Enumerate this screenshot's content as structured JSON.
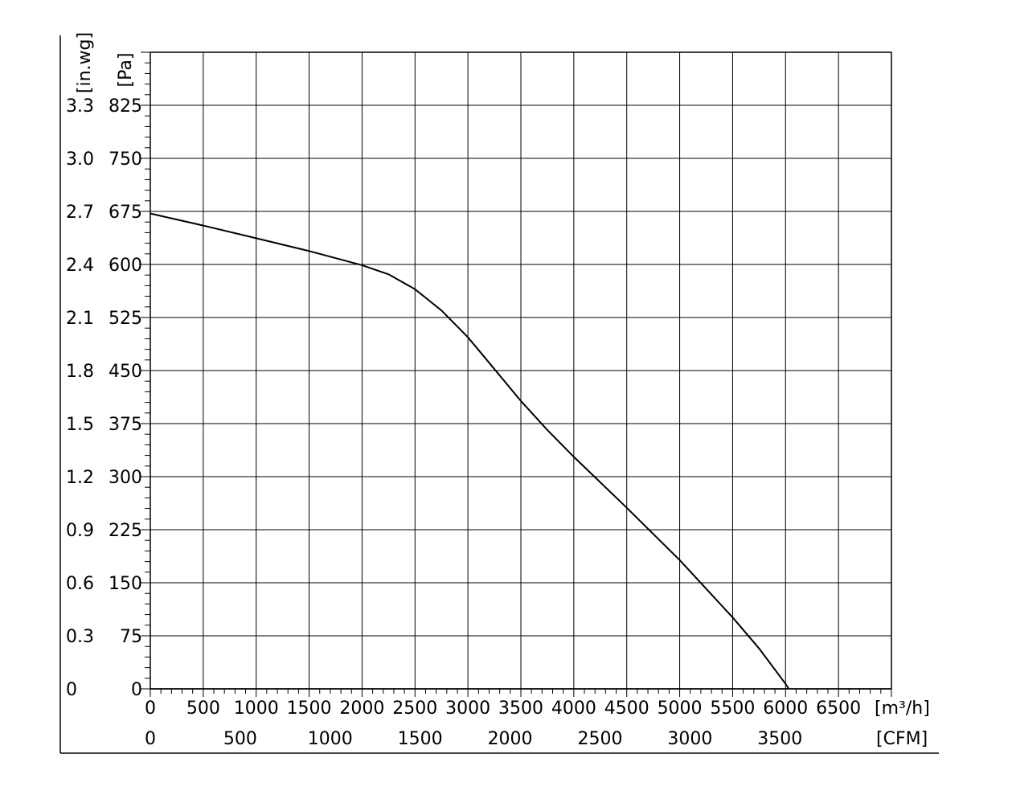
{
  "chart_data": {
    "type": "line",
    "x_unit_label": "[m³/h]",
    "x2_unit_label": "[CFM]",
    "y_unit_label": "[Pa]",
    "y2_unit_label": "[in.wg]",
    "x_ticks": [
      0,
      500,
      1000,
      1500,
      2000,
      2500,
      3000,
      3500,
      4000,
      4500,
      5000,
      5500,
      6000,
      6500
    ],
    "x2_ticks": [
      0,
      500,
      1000,
      1500,
      2000,
      2500,
      3000,
      3500
    ],
    "y_ticks": [
      0,
      75,
      150,
      225,
      300,
      375,
      450,
      525,
      600,
      675,
      750,
      825
    ],
    "y2_ticks": [
      "0",
      "0.3",
      "0.6",
      "0.9",
      "1.2",
      "1.5",
      "1.8",
      "2.1",
      "2.4",
      "2.7",
      "3.0",
      "3.3"
    ],
    "xlim": [
      0,
      7000
    ],
    "ylim": [
      0,
      900
    ],
    "grid": true,
    "series": [
      {
        "x": [
          0,
          500,
          1000,
          1500,
          2000,
          2250,
          2500,
          2750,
          3000,
          3250,
          3500,
          3750,
          4000,
          4500,
          5000,
          5500,
          5750,
          6000,
          6250
        ],
        "values": [
          672,
          655,
          637,
          619,
          599,
          586,
          565,
          535,
          497,
          452,
          407,
          366,
          328,
          256,
          182,
          101,
          57,
          7,
          -50
        ]
      }
    ]
  }
}
